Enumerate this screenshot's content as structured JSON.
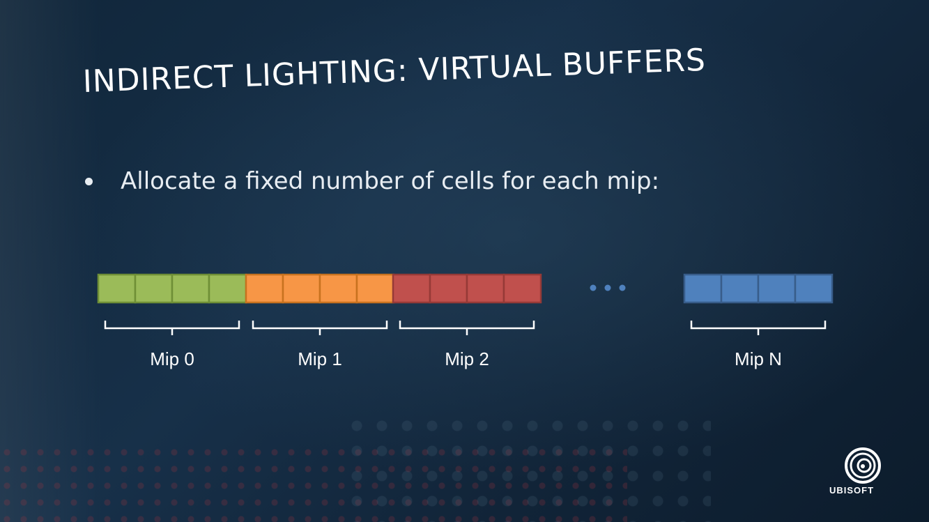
{
  "slide": {
    "title": "INDIRECT LIGHTING: VIRTUAL BUFFERS",
    "bullet": "Allocate a fixed number of cells for each mip:"
  },
  "diagram": {
    "cells_per_mip": 4,
    "groups": [
      {
        "label": "Mip 0",
        "fill": "#9bbb59",
        "stroke": "#6f8f36"
      },
      {
        "label": "Mip 1",
        "fill": "#f79646",
        "stroke": "#c8721f"
      },
      {
        "label": "Mip 2",
        "fill": "#c0504d",
        "stroke": "#963a37"
      },
      {
        "label": "Mip N",
        "fill": "#4f81bd",
        "stroke": "#385d8a"
      }
    ],
    "ellipsis_color": "#4f81bd"
  },
  "logo": {
    "text": "UBISOFT",
    "icon": "ubisoft-swirl-icon"
  }
}
